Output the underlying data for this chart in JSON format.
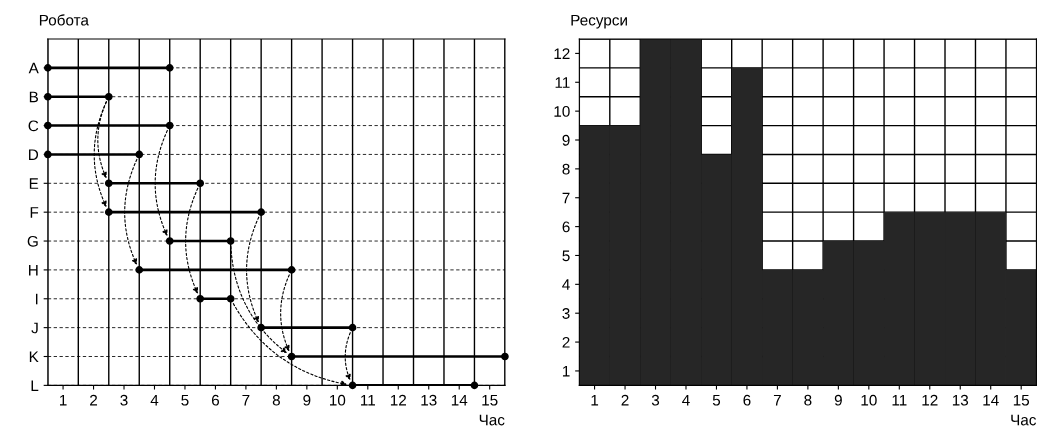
{
  "chart_data": [
    {
      "type": "bar",
      "orientation": "horizontal",
      "ylabel": "Робота",
      "xlabel": "Час",
      "color": "#000000",
      "marker": "circle",
      "grid": true,
      "categories": [
        "A",
        "B",
        "C",
        "D",
        "E",
        "F",
        "G",
        "H",
        "I",
        "J",
        "K",
        "L"
      ],
      "base": [
        0.5,
        0.5,
        0.5,
        0.5,
        2.5,
        2.5,
        4.5,
        3.5,
        5.5,
        7.5,
        8.5,
        10.5
      ],
      "values": [
        4,
        2,
        4,
        3,
        3,
        5,
        2,
        5,
        1,
        3,
        7,
        4
      ],
      "xlim": [
        0.5,
        15.5
      ],
      "xticks": [
        1,
        2,
        3,
        4,
        5,
        6,
        7,
        8,
        9,
        10,
        11,
        12,
        13,
        14,
        15
      ]
    },
    {
      "type": "bar",
      "ylabel": "Ресурси",
      "xlabel": "Час",
      "color": "#262626",
      "grid": true,
      "categories": [
        "1",
        "2",
        "3",
        "4",
        "5",
        "6",
        "7",
        "8",
        "9",
        "10",
        "11",
        "12",
        "13",
        "14",
        "15"
      ],
      "base": [
        0.5,
        0.5,
        0.5,
        0.5,
        0.5,
        0.5,
        0.5,
        0.5,
        0.5,
        0.5,
        0.5,
        0.5,
        0.5,
        0.5,
        0.5
      ],
      "values": [
        9,
        9,
        12,
        12,
        8,
        11,
        4,
        4,
        5,
        5,
        6,
        6,
        6,
        6,
        4
      ],
      "ylim": [
        0.5,
        12.5
      ],
      "yticks": [
        1,
        2,
        3,
        4,
        5,
        6,
        7,
        8,
        9,
        10,
        11,
        12
      ]
    }
  ]
}
